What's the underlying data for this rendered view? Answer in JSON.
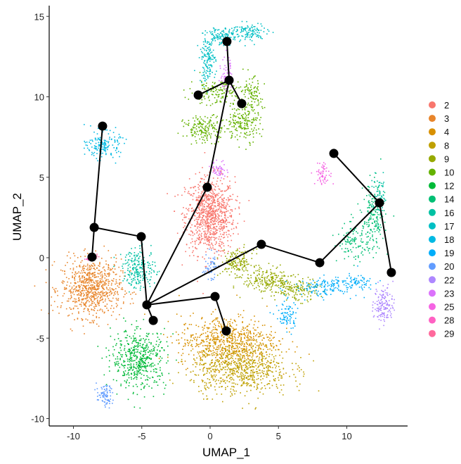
{
  "chart_data": {
    "type": "scatter",
    "title": "",
    "xlabel": "UMAP_1",
    "ylabel": "UMAP_2",
    "xlim": [
      -12,
      14
    ],
    "ylim": [
      -10.5,
      15.5
    ],
    "xticks": [
      -10,
      -5,
      0,
      5,
      10
    ],
    "yticks": [
      -10,
      -5,
      0,
      5,
      10,
      15
    ],
    "grid": false,
    "legend_position": "right",
    "clusters": [
      {
        "name": "2",
        "color": "#F8766D",
        "blobs": [
          {
            "cx": 0,
            "cy": 2.6,
            "sx": 0.9,
            "sy": 1.2,
            "n": 900
          }
        ]
      },
      {
        "name": "3",
        "color": "#E8852B",
        "blobs": [
          {
            "cx": -8.7,
            "cy": -1.9,
            "sx": 1.1,
            "sy": 0.9,
            "n": 750
          }
        ]
      },
      {
        "name": "4",
        "color": "#D89000",
        "blobs": [
          {
            "cx": 1.3,
            "cy": -5.2,
            "sx": 1.8,
            "sy": 0.8,
            "n": 700
          }
        ]
      },
      {
        "name": "8",
        "color": "#BFA000",
        "blobs": [
          {
            "cx": 2.2,
            "cy": -6.9,
            "sx": 1.8,
            "sy": 0.8,
            "n": 700
          }
        ]
      },
      {
        "name": "9",
        "color": "#96A900",
        "blobs": [
          {
            "cx": 2.0,
            "cy": -0.3,
            "sx": 0.6,
            "sy": 0.4,
            "n": 150
          },
          {
            "cx": 4.2,
            "cy": -1.4,
            "sx": 0.9,
            "sy": 0.4,
            "n": 200
          },
          {
            "cx": 6.3,
            "cy": -2.0,
            "sx": 0.8,
            "sy": 0.35,
            "n": 150
          }
        ]
      },
      {
        "name": "10",
        "color": "#64B200",
        "blobs": [
          {
            "cx": -0.3,
            "cy": 8.0,
            "sx": 0.8,
            "sy": 0.4,
            "n": 180
          },
          {
            "cx": 2.5,
            "cy": 8.5,
            "sx": 0.6,
            "sy": 0.6,
            "n": 180
          },
          {
            "cx": 0.5,
            "cy": 10.3,
            "sx": 1.0,
            "sy": 0.4,
            "n": 150
          },
          {
            "cx": 3.0,
            "cy": 10.0,
            "sx": 0.4,
            "sy": 0.6,
            "n": 100
          }
        ]
      },
      {
        "name": "12",
        "color": "#00BA38",
        "blobs": [
          {
            "cx": -5.2,
            "cy": -6.3,
            "sx": 1.0,
            "sy": 0.9,
            "n": 500
          }
        ]
      },
      {
        "name": "14",
        "color": "#00BF74",
        "blobs": [
          {
            "cx": 10.5,
            "cy": 1.0,
            "sx": 0.6,
            "sy": 0.6,
            "n": 120
          },
          {
            "cx": 12.0,
            "cy": 2.5,
            "sx": 0.4,
            "sy": 1.1,
            "n": 180
          }
        ]
      },
      {
        "name": "16",
        "color": "#00C1A3",
        "blobs": [
          {
            "cx": -5.2,
            "cy": -0.7,
            "sx": 0.6,
            "sy": 0.6,
            "n": 220
          },
          {
            "cx": 12.4,
            "cy": 3.8,
            "sx": 0.3,
            "sy": 0.6,
            "n": 60
          }
        ]
      },
      {
        "name": "17",
        "color": "#00BFC4",
        "blobs": [
          {
            "cx": -0.2,
            "cy": 12.3,
            "sx": 0.3,
            "sy": 0.7,
            "n": 140
          },
          {
            "cx": 0.8,
            "cy": 13.8,
            "sx": 0.5,
            "sy": 0.3,
            "n": 120
          },
          {
            "cx": 2.8,
            "cy": 14.0,
            "sx": 0.7,
            "sy": 0.3,
            "n": 120
          }
        ]
      },
      {
        "name": "18",
        "color": "#00B9E3",
        "blobs": [
          {
            "cx": -7.8,
            "cy": 7.0,
            "sx": 0.6,
            "sy": 0.4,
            "n": 160
          }
        ]
      },
      {
        "name": "19",
        "color": "#00ADFA",
        "blobs": [
          {
            "cx": 5.6,
            "cy": -3.6,
            "sx": 0.4,
            "sy": 0.5,
            "n": 80
          },
          {
            "cx": 8.5,
            "cy": -1.8,
            "sx": 1.2,
            "sy": 0.3,
            "n": 150
          },
          {
            "cx": 10.8,
            "cy": -1.5,
            "sx": 0.6,
            "sy": 0.2,
            "n": 60
          }
        ]
      },
      {
        "name": "20",
        "color": "#619CFF",
        "blobs": [
          {
            "cx": -7.7,
            "cy": -8.6,
            "sx": 0.3,
            "sy": 0.35,
            "n": 80
          },
          {
            "cx": 0,
            "cy": -0.5,
            "sx": 0.25,
            "sy": 0.4,
            "n": 50
          }
        ]
      },
      {
        "name": "22",
        "color": "#AE87FF",
        "blobs": [
          {
            "cx": 12.7,
            "cy": -2.9,
            "sx": 0.35,
            "sy": 0.6,
            "n": 140
          }
        ]
      },
      {
        "name": "23",
        "color": "#DB72FB",
        "blobs": [
          {
            "cx": 1.2,
            "cy": 11.4,
            "sx": 0.2,
            "sy": 0.6,
            "n": 60
          },
          {
            "cx": 0.7,
            "cy": 5.5,
            "sx": 0.3,
            "sy": 0.25,
            "n": 50
          }
        ]
      },
      {
        "name": "25",
        "color": "#F564E3",
        "blobs": [
          {
            "cx": 8.3,
            "cy": 5.2,
            "sx": 0.3,
            "sy": 0.35,
            "n": 60
          }
        ]
      },
      {
        "name": "28",
        "color": "#FF61C3",
        "blobs": [
          {
            "cx": -9.0,
            "cy": -0.1,
            "sx": 0.1,
            "sy": 0.1,
            "n": 6
          }
        ]
      },
      {
        "name": "29",
        "color": "#FF699C",
        "blobs": [
          {
            "cx": -8.3,
            "cy": 0.1,
            "sx": 0.1,
            "sy": 0.1,
            "n": 6
          }
        ]
      }
    ],
    "trajectory": {
      "color": "#000000",
      "nodes": [
        [
          1.23,
          13.44
        ],
        [
          1.39,
          11.03
        ],
        [
          -0.87,
          10.11
        ],
        [
          2.31,
          9.58
        ],
        [
          -0.21,
          4.38
        ],
        [
          -7.87,
          8.18
        ],
        [
          -8.48,
          1.88
        ],
        [
          -8.64,
          0.04
        ],
        [
          -5.04,
          1.31
        ],
        [
          -4.63,
          -2.93
        ],
        [
          -4.16,
          -3.9
        ],
        [
          0.36,
          -2.41
        ],
        [
          1.18,
          -4.55
        ],
        [
          3.75,
          0.83
        ],
        [
          8.02,
          -0.31
        ],
        [
          9.05,
          6.48
        ],
        [
          12.39,
          3.41
        ],
        [
          13.26,
          -0.92
        ]
      ],
      "edges": [
        [
          0,
          1
        ],
        [
          1,
          2
        ],
        [
          1,
          3
        ],
        [
          1,
          4
        ],
        [
          4,
          9
        ],
        [
          5,
          6
        ],
        [
          6,
          7
        ],
        [
          6,
          8
        ],
        [
          8,
          9
        ],
        [
          9,
          10
        ],
        [
          9,
          11
        ],
        [
          11,
          12
        ],
        [
          9,
          13
        ],
        [
          13,
          14
        ],
        [
          14,
          16
        ],
        [
          15,
          16
        ],
        [
          16,
          17
        ]
      ]
    }
  }
}
